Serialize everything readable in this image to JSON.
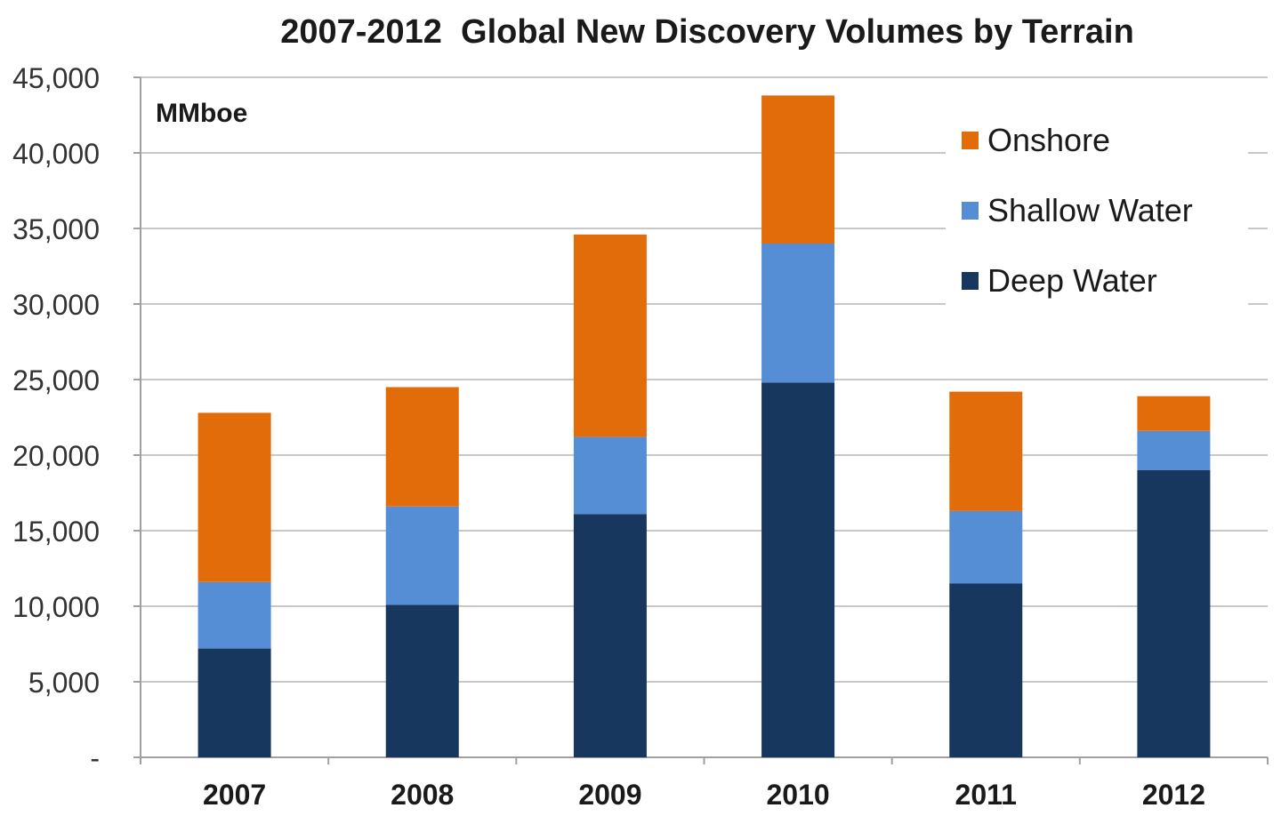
{
  "chart_data": {
    "type": "bar",
    "stacked": true,
    "title": "2007-2012  Global New Discovery Volumes by Terrain",
    "unit_label": "MMboe",
    "categories": [
      "2007",
      "2008",
      "2009",
      "2010",
      "2011",
      "2012"
    ],
    "series": [
      {
        "name": "Deep Water",
        "color": "#17375e",
        "values": [
          7200,
          10100,
          16100,
          24800,
          11500,
          19000
        ]
      },
      {
        "name": "Shallow Water",
        "color": "#558ed5",
        "values": [
          4400,
          6500,
          5100,
          9200,
          4800,
          2600
        ]
      },
      {
        "name": "Onshore",
        "color": "#e36c0a",
        "values": [
          11200,
          7900,
          13400,
          9800,
          7900,
          2300
        ]
      }
    ],
    "legend_order": [
      "Onshore",
      "Shallow Water",
      "Deep Water"
    ],
    "legend_position": "top-right",
    "ylim": [
      0,
      45000
    ],
    "y_ticks": [
      0,
      5000,
      10000,
      15000,
      20000,
      25000,
      30000,
      35000,
      40000,
      45000
    ],
    "y_tick_labels": [
      "-",
      "5,000",
      "10,000",
      "15,000",
      "20,000",
      "25,000",
      "30,000",
      "35,000",
      "40,000",
      "45,000"
    ],
    "grid": true,
    "xlabel": "",
    "ylabel": ""
  }
}
